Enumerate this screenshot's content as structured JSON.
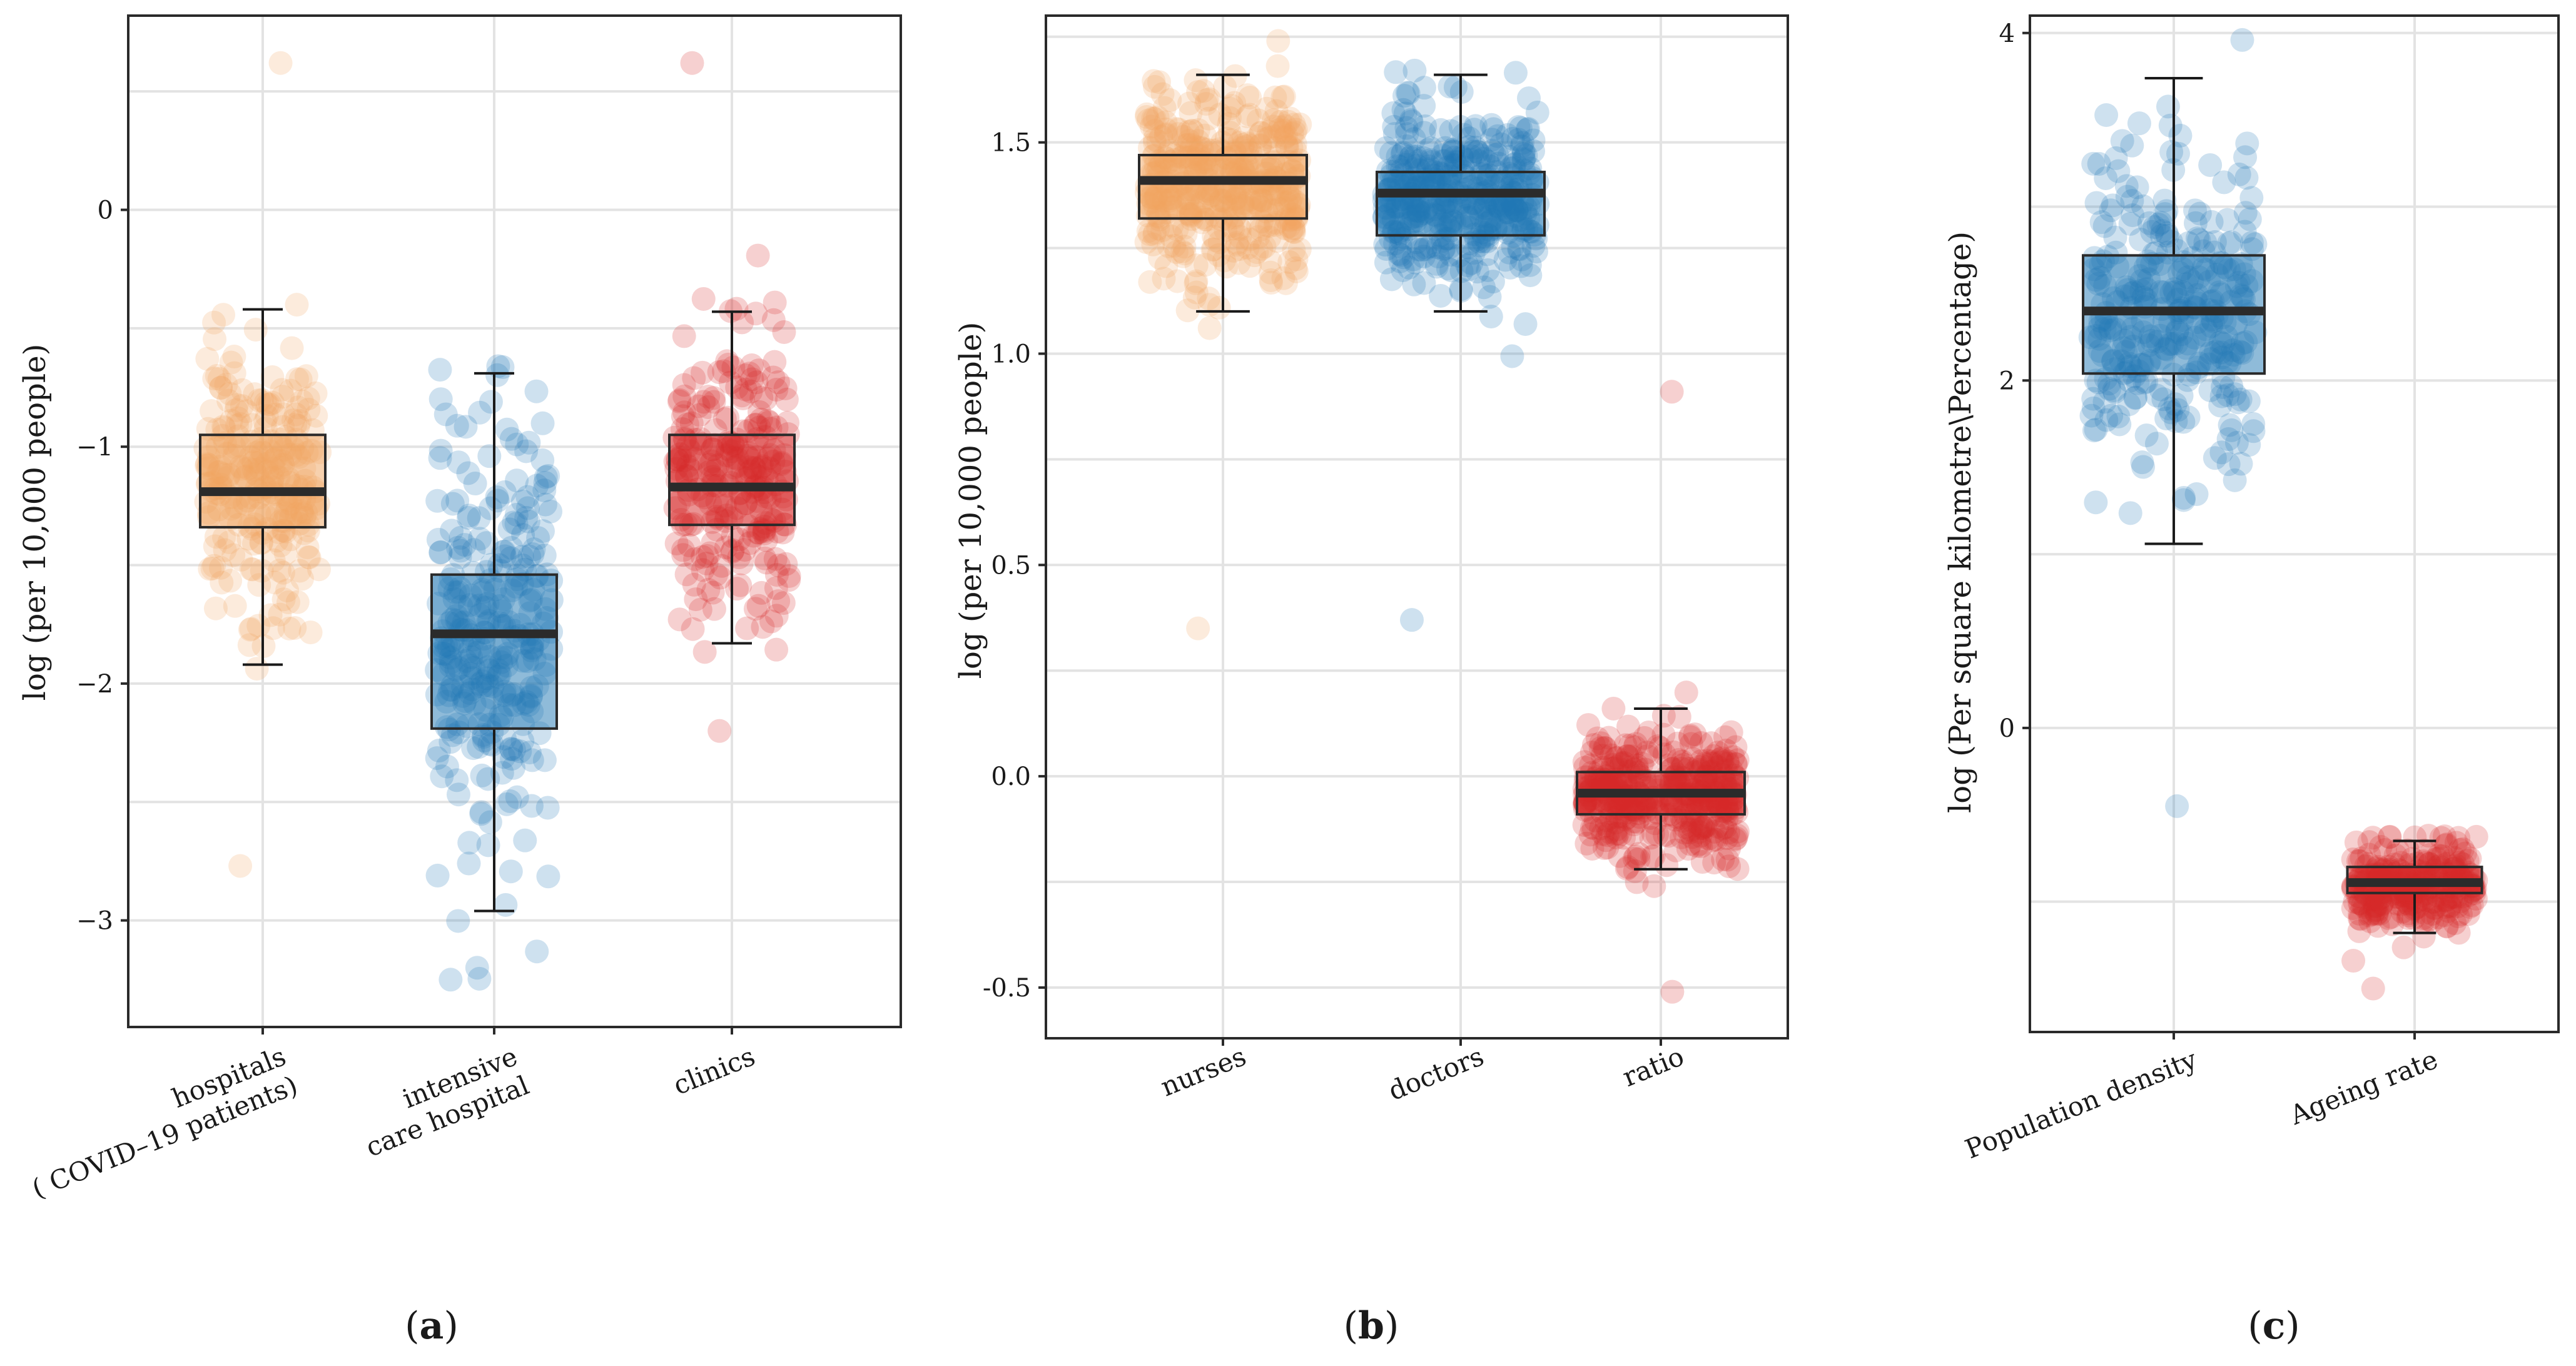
{
  "chart_data": [
    {
      "type": "box",
      "panel_label": "a",
      "title": "",
      "xlabel": "",
      "ylabel": "log (per 10,000 people)",
      "ylim": [
        -3.45,
        0.82
      ],
      "yticks": [
        -3,
        -2,
        -1,
        0
      ],
      "yticklabels": [
        "−3",
        "−2",
        "−1",
        "0"
      ],
      "grid": true,
      "categories": [
        "hospitals\n( COVID–19 patients)",
        "intensive\ncare hospital",
        "clinics"
      ],
      "colors": [
        "#f0a35e",
        "#1f77b4",
        "#d62728"
      ],
      "boxes": [
        {
          "name": "hospitals ( COVID–19 patients)",
          "whisker_low": -1.92,
          "q1": -1.34,
          "median": -1.19,
          "q3": -0.95,
          "whisker_high": -0.42,
          "jitter": {
            "n": 260,
            "center": -1.15,
            "spread": 0.3,
            "min": -2.77,
            "max": 0.62
          }
        },
        {
          "name": "intensive care hospital",
          "whisker_low": -2.96,
          "q1": -2.19,
          "median": -1.79,
          "q3": -1.54,
          "whisker_high": -0.69,
          "jitter": {
            "n": 300,
            "center": -1.85,
            "spread": 0.45,
            "min": -3.25,
            "max": -0.66
          }
        },
        {
          "name": "clinics",
          "whisker_low": -1.83,
          "q1": -1.33,
          "median": -1.17,
          "q3": -0.95,
          "whisker_high": -0.43,
          "jitter": {
            "n": 260,
            "center": -1.14,
            "spread": 0.3,
            "min": -2.2,
            "max": 0.62
          }
        }
      ]
    },
    {
      "type": "box",
      "panel_label": "b",
      "title": "",
      "xlabel": "",
      "ylabel": "log (per 10,000 people)",
      "ylim": [
        -0.62,
        1.8
      ],
      "yticks": [
        -0.5,
        0.0,
        0.5,
        1.0,
        1.5
      ],
      "yticklabels": [
        "-0.5",
        "0.0",
        "0.5",
        "1.0",
        "1.5"
      ],
      "grid": true,
      "categories": [
        "nurses",
        "doctors",
        "ratio"
      ],
      "colors": [
        "#f0a35e",
        "#1f77b4",
        "#d62728"
      ],
      "boxes": [
        {
          "name": "nurses",
          "whisker_low": 1.1,
          "q1": 1.32,
          "median": 1.41,
          "q3": 1.47,
          "whisker_high": 1.66,
          "jitter": {
            "n": 420,
            "center": 1.4,
            "spread": 0.12,
            "min": 0.35,
            "max": 1.74
          }
        },
        {
          "name": "doctors",
          "whisker_low": 1.1,
          "q1": 1.28,
          "median": 1.38,
          "q3": 1.43,
          "whisker_high": 1.66,
          "jitter": {
            "n": 420,
            "center": 1.37,
            "spread": 0.1,
            "min": 0.37,
            "max": 1.67
          }
        },
        {
          "name": "ratio",
          "whisker_low": -0.22,
          "q1": -0.09,
          "median": -0.04,
          "q3": 0.01,
          "whisker_high": 0.16,
          "jitter": {
            "n": 420,
            "center": -0.04,
            "spread": 0.07,
            "min": -0.51,
            "max": 0.91
          }
        }
      ]
    },
    {
      "type": "box",
      "panel_label": "c",
      "title": "",
      "xlabel": "",
      "ylabel": "log (Per square kilometre\\Percentage)",
      "ylim": [
        -1.75,
        4.1
      ],
      "yticks": [
        0,
        2,
        4
      ],
      "yticklabels": [
        "0",
        "2",
        "4"
      ],
      "grid": true,
      "categories": [
        "Population density",
        "Ageing rate"
      ],
      "colors": [
        "#1f77b4",
        "#d62728"
      ],
      "boxes": [
        {
          "name": "Population density",
          "whisker_low": 1.06,
          "q1": 2.04,
          "median": 2.4,
          "q3": 2.72,
          "whisker_high": 3.74,
          "jitter": {
            "n": 320,
            "center": 2.4,
            "spread": 0.45,
            "min": -0.45,
            "max": 3.96
          }
        },
        {
          "name": "Ageing rate",
          "whisker_low": -1.18,
          "q1": -0.95,
          "median": -0.89,
          "q3": -0.8,
          "whisker_high": -0.65,
          "jitter": {
            "n": 300,
            "center": -0.9,
            "spread": 0.13,
            "min": -1.5,
            "max": -0.62
          }
        }
      ]
    }
  ]
}
